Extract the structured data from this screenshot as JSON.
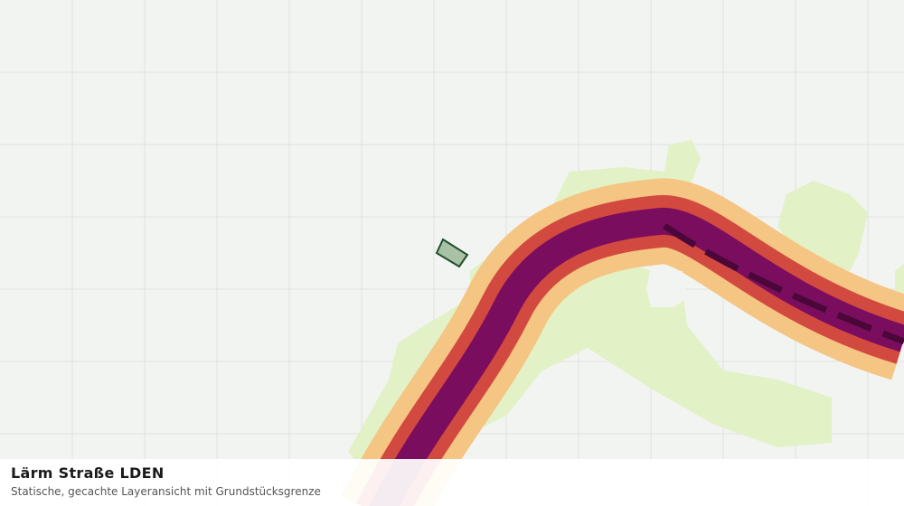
{
  "panel": {
    "title": "Lärm Straße LDEN",
    "subtitle": "Statische, gecachte Layeransicht mit Grundstücksgrenze"
  }
}
